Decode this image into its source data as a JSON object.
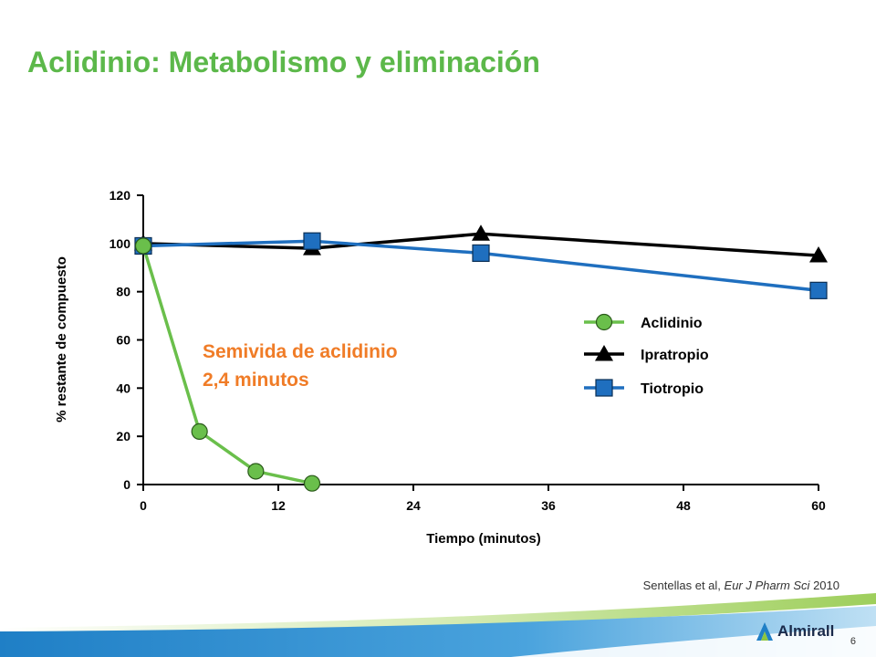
{
  "slide": {
    "title": "Aclidinio: Metabolismo y eliminación",
    "citation_authors": "Sentellas et al, ",
    "citation_journal": "Eur J Pharm Sci",
    "citation_year": " 2010",
    "logo_text": "Almirall",
    "page_number": "6"
  },
  "chart_data": {
    "type": "line",
    "xlabel": "Tiempo (minutos)",
    "ylabel": "% restante de compuesto",
    "xlim": [
      0,
      60
    ],
    "ylim": [
      0,
      120
    ],
    "xticks": [
      0,
      12,
      24,
      36,
      48,
      60
    ],
    "yticks": [
      0,
      20,
      40,
      60,
      80,
      100,
      120
    ],
    "grid": false,
    "legend_position": "right",
    "annotation": {
      "line1": "Semivida de aclidinio",
      "line2": "2,4 minutos",
      "color": "#f07c27"
    },
    "series": [
      {
        "name": "Aclidinio",
        "marker": "circle",
        "color": "#6abf4b",
        "x": [
          0,
          5,
          10,
          15
        ],
        "y": [
          99,
          22,
          5.5,
          0.5
        ]
      },
      {
        "name": "Ipratropio",
        "marker": "triangle",
        "color": "#000000",
        "x": [
          0,
          15,
          30,
          60
        ],
        "y": [
          100,
          98,
          104,
          95
        ]
      },
      {
        "name": "Tiotropio",
        "marker": "square",
        "color": "#1f6fbf",
        "x": [
          0,
          15,
          30,
          60
        ],
        "y": [
          99,
          101,
          96,
          80.5
        ]
      }
    ]
  },
  "colors": {
    "title": "#5cb84a",
    "footer_blue": "#1f7fc6",
    "footer_green": "#8dc63f"
  }
}
